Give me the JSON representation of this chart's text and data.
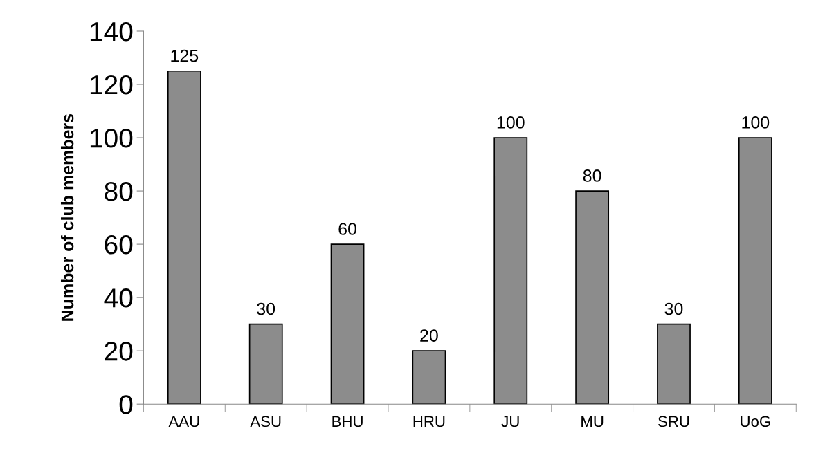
{
  "chart_data": {
    "type": "bar",
    "ylabel": "Number of club members",
    "categories": [
      "AAU",
      "ASU",
      "BHU",
      "HRU",
      "JU",
      "MU",
      "SRU",
      "UoG"
    ],
    "values": [
      125,
      30,
      60,
      20,
      100,
      80,
      30,
      100
    ],
    "color": "#8c8c8c",
    "ylim": [
      0,
      140
    ],
    "yticks": [
      0,
      20,
      40,
      60,
      80,
      100,
      120,
      140
    ],
    "data_labels": true,
    "grid": false,
    "legend": false
  }
}
